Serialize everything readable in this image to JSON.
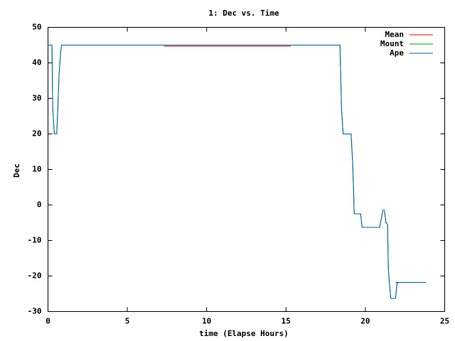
{
  "chart_data": {
    "type": "line",
    "title": "1: Dec vs. Time",
    "xlabel": "time (Elapse Hours)",
    "ylabel": "Dec",
    "xlim": [
      0,
      25
    ],
    "xticks": [
      0,
      5,
      10,
      15,
      20,
      25
    ],
    "ylim": [
      -30,
      50
    ],
    "yticks": [
      -30,
      -20,
      -10,
      0,
      10,
      20,
      30,
      40,
      50
    ],
    "legend": "top-right",
    "series": [
      {
        "name": "Mean",
        "color": "#ff0000",
        "x": [
          7.3,
          15.3,
          15.4,
          21.9,
          23.8
        ],
        "values": [
          44.7,
          44.7,
          null,
          -21.8,
          -21.8
        ]
      },
      {
        "name": "Mount",
        "color": "#00a000",
        "x": [
          0,
          0.25,
          0.3,
          0.4,
          0.55,
          0.6,
          0.7,
          0.8,
          0.85,
          18.4,
          18.5,
          18.6,
          19.1,
          19.2,
          19.3,
          19.7,
          19.8,
          20.9,
          21.0,
          21.1,
          21.2,
          21.3,
          21.4,
          21.45,
          21.5,
          21.6,
          21.9,
          22.0,
          22.1,
          23.8
        ],
        "values": [
          45,
          45,
          27,
          20,
          20,
          25,
          37,
          43,
          45,
          45,
          27,
          20,
          20,
          12,
          -2.5,
          -2.5,
          -6.3,
          -6.3,
          -4,
          -1.5,
          -1.5,
          -5,
          -5.5,
          -18,
          -21,
          -26.3,
          -26.3,
          -22,
          -21.8,
          -21.8
        ]
      },
      {
        "name": "Ape",
        "color": "#0060ad",
        "x": [
          0,
          0.25,
          0.3,
          0.4,
          0.55,
          0.6,
          0.7,
          0.8,
          0.85,
          18.4,
          18.5,
          18.6,
          19.1,
          19.2,
          19.3,
          19.7,
          19.8,
          20.9,
          21.0,
          21.1,
          21.2,
          21.3,
          21.4,
          21.45,
          21.5,
          21.6,
          21.9,
          22.0,
          22.1,
          23.8
        ],
        "values": [
          45,
          45,
          27,
          20,
          20,
          25,
          37,
          43,
          45,
          45,
          27,
          20,
          20,
          12,
          -2.5,
          -2.5,
          -6.3,
          -6.3,
          -4,
          -1.5,
          -1.5,
          -5,
          -5.5,
          -18,
          -21,
          -26.3,
          -26.3,
          -22,
          -21.8,
          -21.8
        ]
      }
    ]
  }
}
